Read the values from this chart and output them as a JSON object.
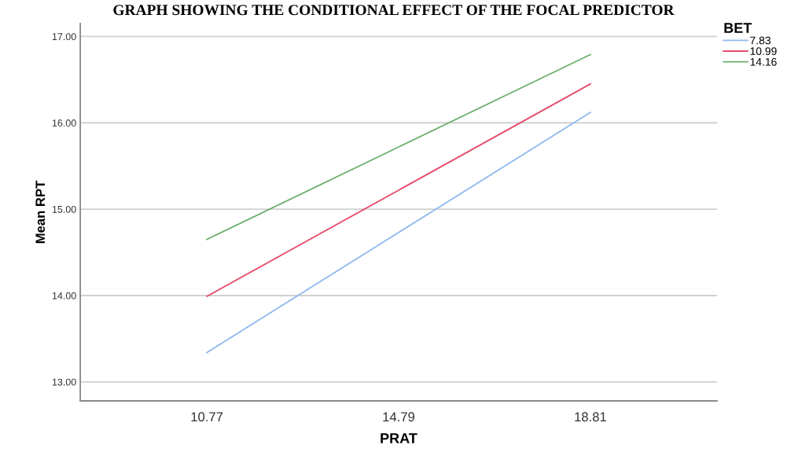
{
  "chart_data": {
    "type": "line",
    "title": "GRAPH SHOWING THE CONDITIONAL EFFECT OF THE FOCAL PREDICTOR",
    "xlabel": "PRAT",
    "ylabel": "Mean RPT",
    "legend_title": "BET",
    "categories": [
      "10.77",
      "14.79",
      "18.81"
    ],
    "series": [
      {
        "name": "7.83",
        "color": "#8fb8ee",
        "values": [
          13.34,
          14.73,
          16.12
        ]
      },
      {
        "name": "10.99",
        "color": "#e64a6a",
        "values": [
          13.99,
          15.22,
          16.45
        ]
      },
      {
        "name": "14.16",
        "color": "#6aaf6a",
        "values": [
          14.65,
          15.72,
          16.79
        ]
      }
    ],
    "ylim": [
      12.78,
      17.15
    ],
    "yticks": [
      {
        "value": 13,
        "label": "13.00"
      },
      {
        "value": 14,
        "label": "14.00"
      },
      {
        "value": 15,
        "label": "15.00"
      },
      {
        "value": 16,
        "label": "16.00"
      },
      {
        "value": 17,
        "label": "17.00"
      }
    ],
    "grid": "y",
    "legend": "top right",
    "marker": "none",
    "line_style": "solid"
  }
}
